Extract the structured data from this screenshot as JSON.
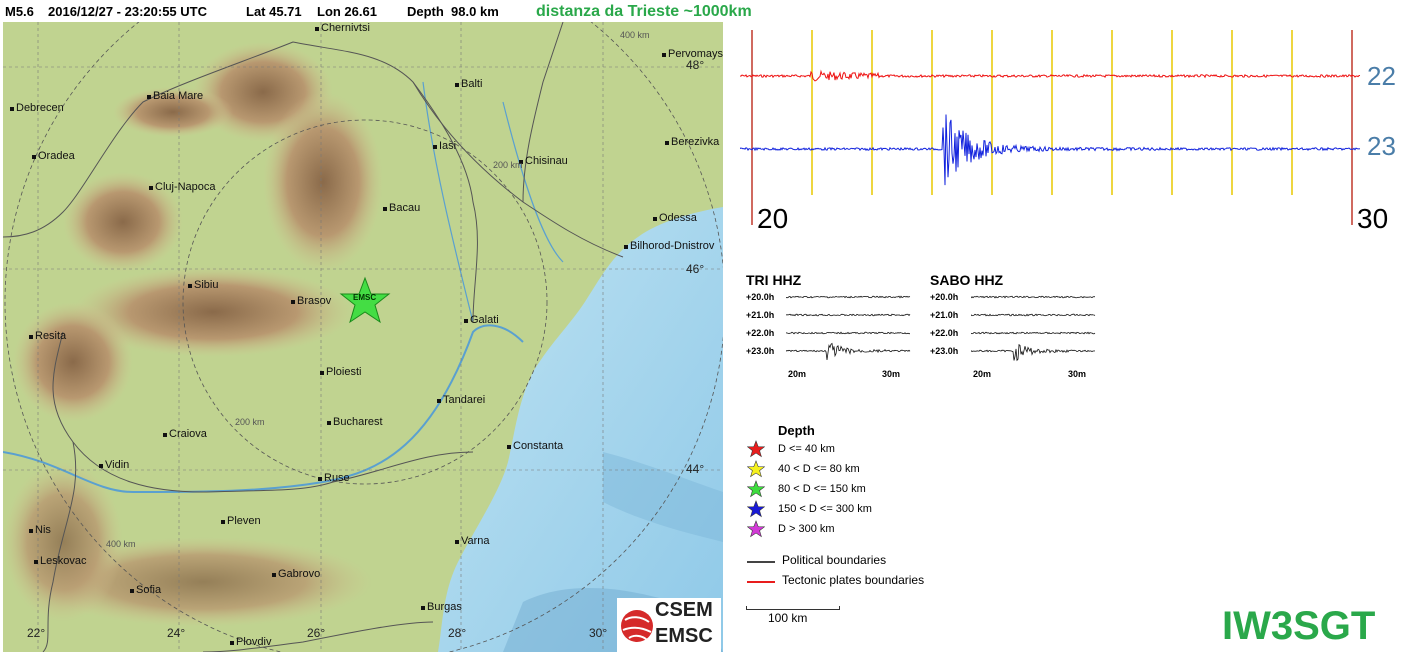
{
  "header": {
    "magnitude": "M5.6",
    "datetime": "2016/12/27 - 23:20:55 UTC",
    "lat": "Lat 45.71",
    "lon": "Lon 26.61",
    "depth": "Depth  98.0 km",
    "distance_note": "distanza da Trieste ~1000km"
  },
  "map": {
    "epicenter_label": "EMSC",
    "cities": [
      {
        "name": "Chernivtsi"
      },
      {
        "name": "Pervomays"
      },
      {
        "name": "Debrecen"
      },
      {
        "name": "Baia Mare"
      },
      {
        "name": "Balti"
      },
      {
        "name": "Oradea"
      },
      {
        "name": "Iasi"
      },
      {
        "name": "Berezivka"
      },
      {
        "name": "Chisinau"
      },
      {
        "name": "Cluj-Napoca"
      },
      {
        "name": "Bacau"
      },
      {
        "name": "Odessa"
      },
      {
        "name": "Bilhorod-Dnistrov"
      },
      {
        "name": "Sibiu"
      },
      {
        "name": "Brasov"
      },
      {
        "name": "Galati"
      },
      {
        "name": "Resita"
      },
      {
        "name": "Ploiesti"
      },
      {
        "name": "Tandarei"
      },
      {
        "name": "Bucharest"
      },
      {
        "name": "Craiova"
      },
      {
        "name": "Constanta"
      },
      {
        "name": "Vidin"
      },
      {
        "name": "Ruse"
      },
      {
        "name": "Pleven"
      },
      {
        "name": "Varna"
      },
      {
        "name": "Nis"
      },
      {
        "name": "Leskovac"
      },
      {
        "name": "Gabrovo"
      },
      {
        "name": "Sofia"
      },
      {
        "name": "Burgas"
      },
      {
        "name": "Plovdiv"
      }
    ],
    "lat_labels": [
      "48°",
      "46°",
      "44°"
    ],
    "lon_labels": [
      "22°",
      "24°",
      "26°",
      "28°",
      "30°"
    ],
    "ring_labels": [
      "400 km",
      "200 km",
      "200 km",
      "400 km"
    ]
  },
  "seismogram": {
    "hour_labels": [
      "22",
      "23"
    ],
    "minute_labels": [
      "20",
      "30"
    ],
    "trace_colors": [
      "#ee1111",
      "#1122dd"
    ],
    "marker_color": "#e8c800"
  },
  "stations": [
    {
      "name": "TRI HHZ",
      "rows": [
        "+20.0h",
        "+21.0h",
        "+22.0h",
        "+23.0h"
      ],
      "x_labels": [
        "20m",
        "30m"
      ]
    },
    {
      "name": "SABO HHZ",
      "rows": [
        "+20.0h",
        "+21.0h",
        "+22.0h",
        "+23.0h"
      ],
      "x_labels": [
        "20m",
        "30m"
      ]
    }
  ],
  "legend": {
    "title": "Depth",
    "depth_items": [
      {
        "label": "D <= 40 km",
        "color": "#e81d1d"
      },
      {
        "label": "40 < D <= 80 km",
        "color": "#f5f01e"
      },
      {
        "label": "80 < D <= 150 km",
        "color": "#3ddc3d"
      },
      {
        "label": "150 < D <= 300 km",
        "color": "#1a1ad6"
      },
      {
        "label": "D > 300 km",
        "color": "#d23ad6"
      }
    ],
    "line_items": [
      {
        "label": "Political boundaries",
        "color": "#444444"
      },
      {
        "label": "Tectonic plates boundaries",
        "color": "#e81d1d"
      }
    ]
  },
  "scale_label": "100 km",
  "logo": {
    "line1": "CSEM",
    "line2": "EMSC"
  },
  "callsign": "IW3SGT"
}
